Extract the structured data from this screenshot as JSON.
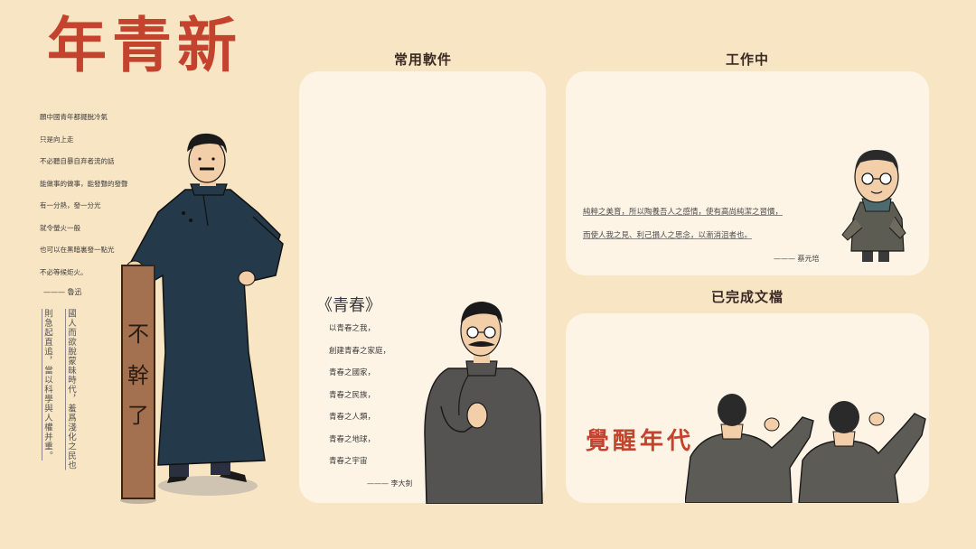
{
  "header": {
    "title": "年青新"
  },
  "poem": {
    "lines": [
      "願中國青年都擺脫冷氣",
      "只是向上走",
      "不必聽自暴自弃者流的話",
      "能做事的做事，能發聲的發聲",
      "有一分熱，發一分光",
      "就令螢火一般",
      "也可以在黑暗裏發一點光",
      "不必等候炬火。"
    ],
    "signature": "——— 魯迅"
  },
  "vertical_quote": {
    "col1": "國人而欲脫蒙昧時代，羞爲淺化之民也",
    "col2": "則急起直追，當以科學與人權并重。"
  },
  "signboard": {
    "text": "不幹了"
  },
  "sections": {
    "software": "常用軟件",
    "working": "工作中",
    "done": "已完成文檔"
  },
  "youth": {
    "title": "《青春》",
    "lines": [
      "以青春之我，",
      "創建青春之家庭，",
      "青春之國家，",
      "青春之民族，",
      "青春之人類，",
      "青春之地球，",
      "青春之宇宙"
    ],
    "signature": "——— 李大釗"
  },
  "work_quote": {
    "lines": [
      "純粹之美育，所以陶養吾人之感情，使有高尚純潔之習慣，",
      "而使人我之見、利己損人之思念，以漸消沮者也。"
    ],
    "signature": "——— 蔡元培"
  },
  "done_card": {
    "text": "覺醒年代"
  },
  "colors": {
    "bg": "#f8e5c4",
    "accent": "#c4432f",
    "card": "#fdf4e6",
    "robe": "#243a4a",
    "robe_gray": "#555351",
    "coat_olive": "#5d5c52"
  },
  "icons": [
    "luxun-figure-illustration",
    "lidazhao-figure-illustration",
    "caiyuanpei-figure-illustration",
    "students-figure-illustration",
    "signboard-illustration"
  ]
}
